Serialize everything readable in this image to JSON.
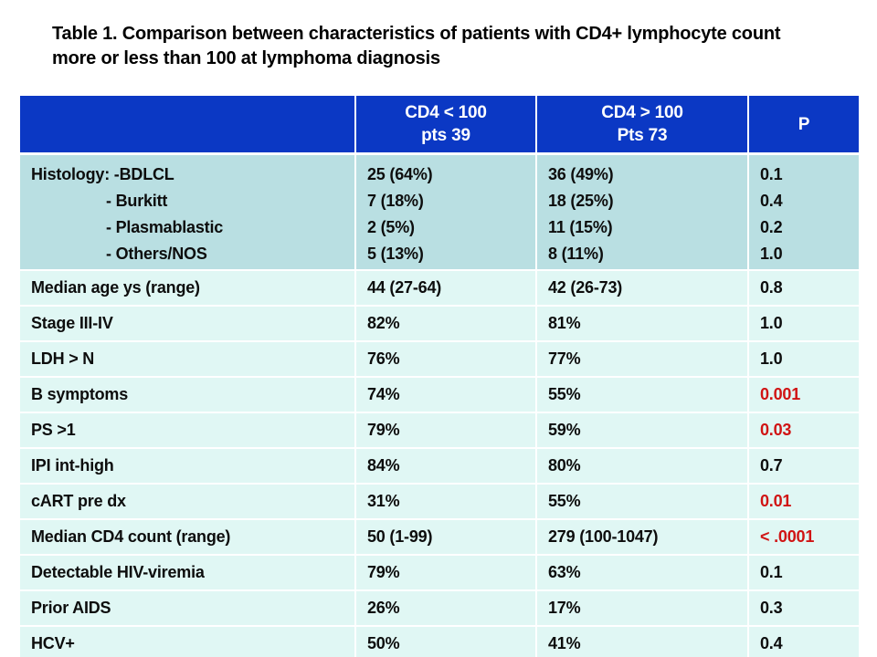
{
  "title_lines": [
    "Table 1. Comparison between characteristics of patients with CD4+ lymphocyte count",
    "more or less than 100 at lymphoma diagnosis"
  ],
  "colors": {
    "header_bg": "#0b38c4",
    "header_text": "#ffffff",
    "histology_bg": "#b9dfe2",
    "row_bg": "#e0f7f4",
    "p_significant": "#d01414",
    "text": "#0d0d0d"
  },
  "table": {
    "header": {
      "empty": "",
      "cd4_low": {
        "line1": "CD4 < 100",
        "line2": "pts 39"
      },
      "cd4_high": {
        "line1": "CD4 > 100",
        "line2": "Pts 73"
      },
      "p": "P"
    },
    "histology": {
      "label_lines": [
        "Histology: -BDLCL",
        "- Burkitt",
        "- Plasmablastic",
        "- Others/NOS"
      ],
      "cd4_low_lines": [
        "25 (64%)",
        "7 (18%)",
        "2 (5%)",
        "5 (13%)"
      ],
      "cd4_high_lines": [
        "36 (49%)",
        "18 (25%)",
        "11 (15%)",
        "8 (11%)"
      ],
      "p_lines": [
        "0.1",
        "0.4",
        "0.2",
        "1.0"
      ]
    },
    "rows": [
      {
        "label": "Median age ys (range)",
        "cd4_low": "44 (27-64)",
        "cd4_high": "42 (26-73)",
        "p": "0.8",
        "p_significant": false
      },
      {
        "label": "Stage III-IV",
        "cd4_low": "82%",
        "cd4_high": "81%",
        "p": "1.0",
        "p_significant": false
      },
      {
        "label": "LDH > N",
        "cd4_low": "76%",
        "cd4_high": "77%",
        "p": "1.0",
        "p_significant": false
      },
      {
        "label": "B symptoms",
        "cd4_low": "74%",
        "cd4_high": "55%",
        "p": "0.001",
        "p_significant": true
      },
      {
        "label": "PS >1",
        "cd4_low": "79%",
        "cd4_high": "59%",
        "p": "0.03",
        "p_significant": true
      },
      {
        "label": "IPI int-high",
        "cd4_low": "84%",
        "cd4_high": "80%",
        "p": "0.7",
        "p_significant": false
      },
      {
        "label": "cART pre dx",
        "cd4_low": "31%",
        "cd4_high": "55%",
        "p": "0.01",
        "p_significant": true
      },
      {
        "label": "Median CD4 count (range)",
        "cd4_low": "50 (1-99)",
        "cd4_high": "279 (100-1047)",
        "p": "< .0001",
        "p_significant": true
      },
      {
        "label": "Detectable HIV-viremia",
        "cd4_low": "79%",
        "cd4_high": "63%",
        "p": "0.1",
        "p_significant": false
      },
      {
        "label": "Prior AIDS",
        "cd4_low": "26%",
        "cd4_high": "17%",
        "p": "0.3",
        "p_significant": false
      },
      {
        "label": "HCV+",
        "cd4_low": "50%",
        "cd4_high": "41%",
        "p": "0.4",
        "p_significant": false
      }
    ]
  }
}
